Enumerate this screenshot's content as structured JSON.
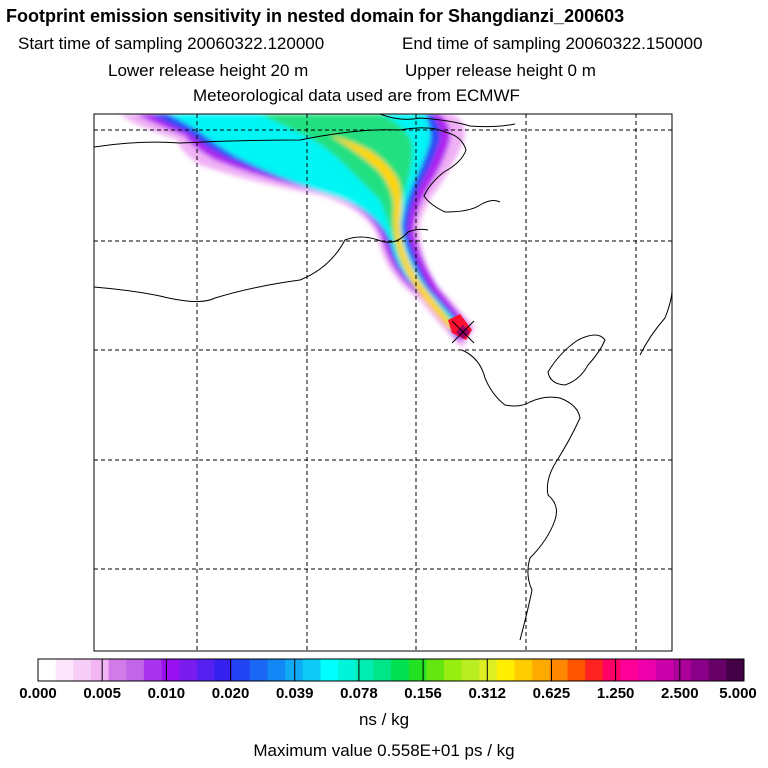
{
  "header": {
    "title": "Footprint emission sensitivity in nested domain for Shangdianzi_200603",
    "start_label": "Start time of sampling 20060322.120000",
    "end_label": "End time of sampling 20060322.150000",
    "lower_label": "Lower release height   20 m",
    "upper_label": "Upper release height    0 m",
    "met_label": "Meteorological data used are from ECMWF"
  },
  "legend": {
    "units": "ns / kg",
    "max_value": "Maximum value  0.558E+01 ps / kg",
    "tick_labels": [
      "0.000",
      "0.005",
      "0.010",
      "0.020",
      "0.039",
      "0.078",
      "0.156",
      "0.312",
      "0.625",
      "1.250",
      "2.500",
      "5.000"
    ],
    "color_segments": [
      "#ffffff",
      "#fbe6fb",
      "#f6cdf7",
      "#f2b4f3",
      "#d07be8",
      "#c066e6",
      "#aa33ee",
      "#9911f0",
      "#7a1bf0",
      "#5520f0",
      "#3522f0",
      "#2244f5",
      "#1a66f5",
      "#1188f5",
      "#10aaf5",
      "#0dcbf5",
      "#00ffff",
      "#00f5d8",
      "#00eeb0",
      "#00e588",
      "#00e050",
      "#22e022",
      "#66e611",
      "#99ee11",
      "#bbee22",
      "#ddee22",
      "#ffee00",
      "#ffcc00",
      "#ffaa00",
      "#ff8800",
      "#ff5500",
      "#ff2222",
      "#ff0066",
      "#ff0099",
      "#ee00aa",
      "#cc00aa",
      "#aa0099",
      "#880088",
      "#660066",
      "#440044"
    ]
  },
  "map": {
    "site_marker": "receptor-site",
    "plume_colors": {
      "outer": "#f0b0f5",
      "violet": "#b020f0",
      "blue": "#2a4af5",
      "cyan": "#00f5f5",
      "green": "#22e080",
      "yellow": "#ffd400",
      "red": "#ff1030",
      "peak": "#990066"
    }
  }
}
